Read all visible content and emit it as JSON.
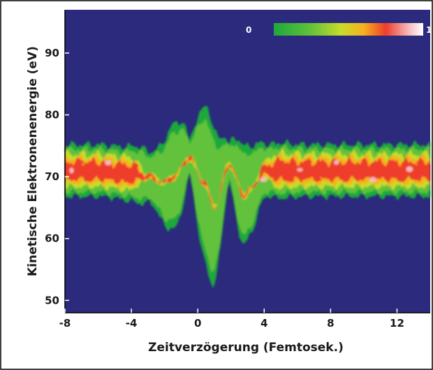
{
  "chart_data": {
    "type": "heatmap",
    "xlabel": "Zeitverzögerung (Femtosek.)",
    "ylabel": "Kinetische Elektronenenergie (eV)",
    "xlim": [
      -8,
      14
    ],
    "ylim": [
      48,
      97
    ],
    "x_ticks": [
      -8,
      -4,
      0,
      4,
      8,
      12
    ],
    "y_ticks": [
      50,
      60,
      70,
      80,
      90
    ],
    "colorbar": {
      "min_label": "0",
      "max_label": "1",
      "position": "top-right"
    },
    "colors": {
      "background": "#2b2a7c",
      "scale": [
        "#1fa83c",
        "#62c23a",
        "#c8dc2a",
        "#f5b21e",
        "#ee3d2b",
        "#f6b9b9",
        "#ffffff"
      ]
    },
    "band": {
      "description_values": "center energy (eV) of the emission band vs delay (fs)",
      "x": [
        -8,
        -6,
        -4,
        -3,
        -2,
        -1.5,
        -0.5,
        0.4,
        1.0,
        1.9,
        2.8,
        3.2,
        4,
        6,
        8,
        10,
        12,
        14
      ],
      "center": [
        71,
        71,
        70.5,
        70,
        69,
        70,
        73,
        69,
        65,
        72,
        67,
        68,
        71,
        71,
        71,
        71,
        71,
        71
      ]
    }
  }
}
